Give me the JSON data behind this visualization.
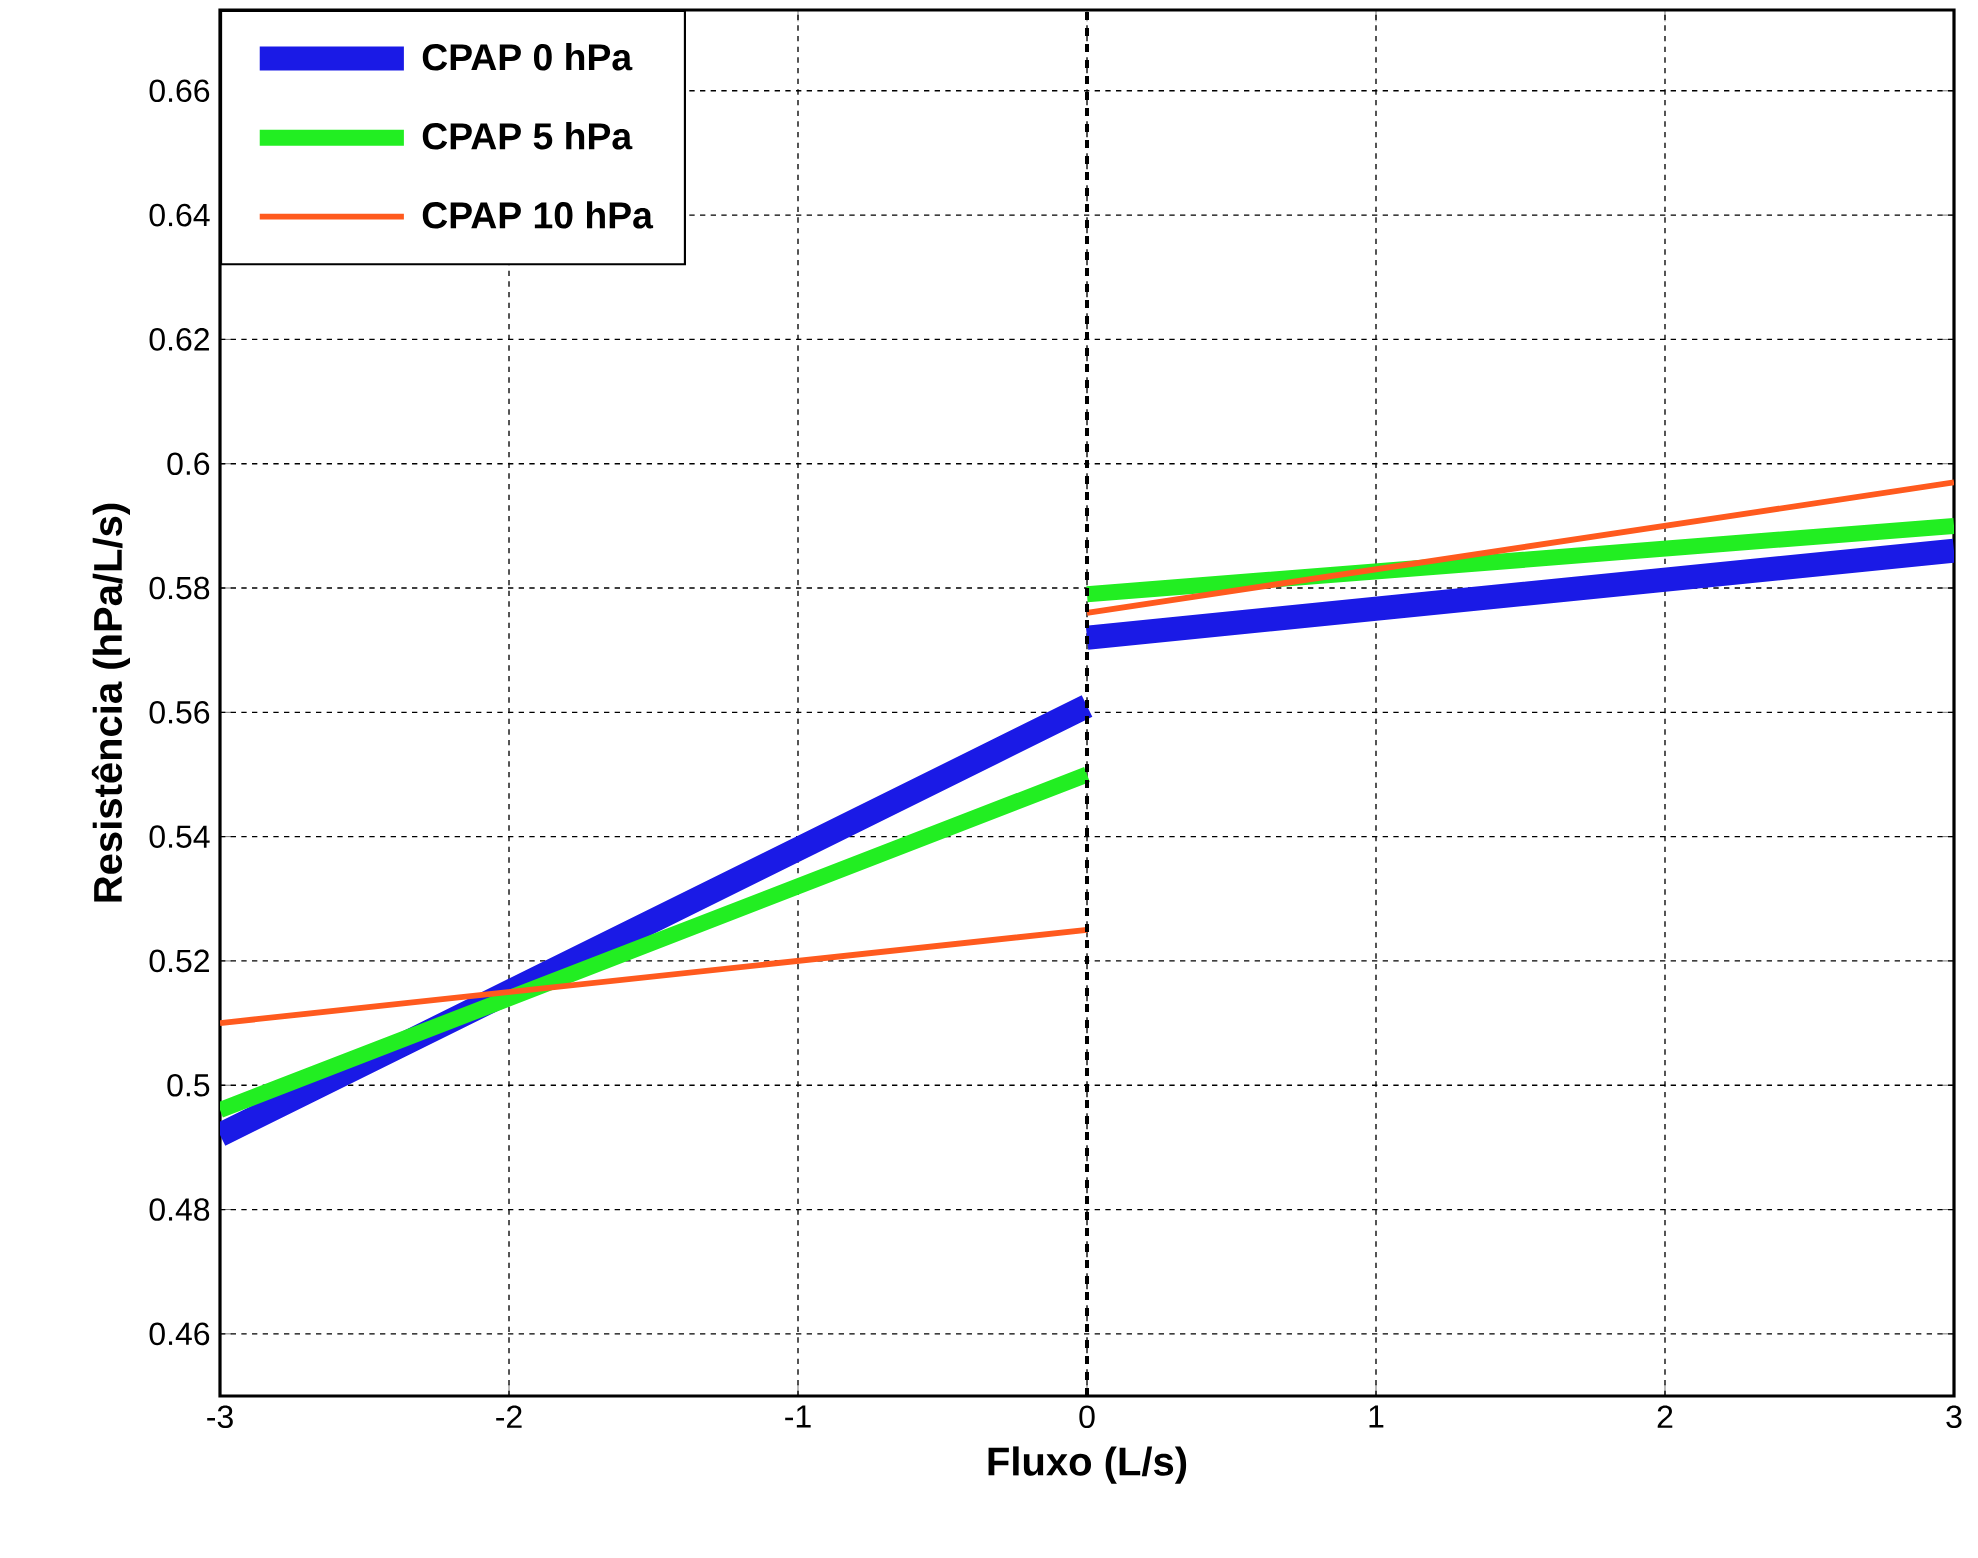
{
  "chart_data": {
    "type": "line",
    "xlabel": "Fluxo (L/s)",
    "ylabel": "Resistência (hPa/L/s)",
    "x": [
      -3,
      0,
      null,
      0,
      3
    ],
    "series": [
      {
        "name": "CPAP 0 hPa",
        "color": "#1a1ae6",
        "values": [
          0.492,
          0.561,
          null,
          0.572,
          0.586
        ]
      },
      {
        "name": "CPAP 5 hPa",
        "color": "#22ee22",
        "values": [
          0.496,
          0.55,
          null,
          0.579,
          0.59
        ]
      },
      {
        "name": "CPAP 10 hPa",
        "color": "#ff5a1e",
        "values": [
          0.51,
          0.525,
          null,
          0.576,
          0.597
        ]
      }
    ],
    "xlim": [
      -3,
      3
    ],
    "ylim": [
      0.45,
      0.673
    ],
    "xticks": [
      -3,
      -2,
      -1,
      0,
      1,
      2,
      3
    ],
    "yticks": [
      0.46,
      0.48,
      0.5,
      0.52,
      0.54,
      0.56,
      0.58,
      0.6,
      0.62,
      0.64,
      0.66
    ],
    "ref_lines": [
      {
        "axis": "x",
        "value": 0,
        "color": "#000000",
        "line_style": "dashed"
      }
    ],
    "grid": true,
    "legend": "top left",
    "line_style": "solid",
    "marker": "none"
  }
}
